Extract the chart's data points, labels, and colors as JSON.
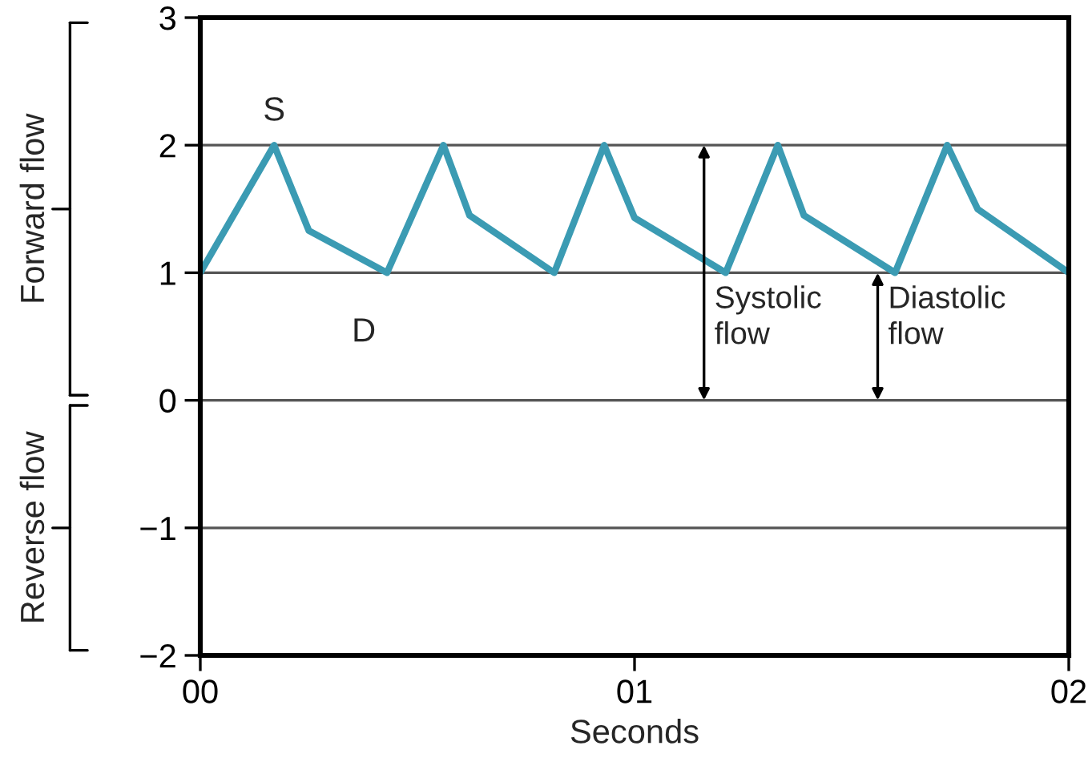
{
  "chart_data": {
    "type": "line",
    "xlabel": "Seconds",
    "series": [
      {
        "color": "#3b9bb3",
        "x": [
          0,
          0.17,
          0.25,
          0.43,
          0.56,
          0.62,
          0.815,
          0.93,
          1.0,
          1.21,
          1.33,
          1.39,
          1.6,
          1.72,
          1.79,
          2
        ],
        "values": [
          1,
          2,
          1.33,
          1,
          2,
          1.45,
          1,
          2,
          1.43,
          1,
          2,
          1.45,
          1,
          2,
          1.5,
          1
        ]
      }
    ],
    "xlim": [
      0,
      2
    ],
    "xticks": [
      {
        "value": 0,
        "label": "00"
      },
      {
        "value": 1,
        "label": "01"
      },
      {
        "value": 2,
        "label": "02"
      }
    ],
    "ylim": [
      -2,
      3
    ],
    "yticks": [
      {
        "value": -2,
        "label": "−2"
      },
      {
        "value": -1,
        "label": "−1"
      },
      0,
      1,
      2,
      3
    ],
    "grid": "y",
    "marker": "none",
    "line_style": "solid",
    "annotations": [
      {
        "text": "S",
        "x": 0.17,
        "y": 2
      },
      {
        "text": "D",
        "x": 0.43,
        "y": 1
      },
      "Forward flow",
      "Reverse flow",
      "Systolic\nflow",
      "Diastolic\nflow"
    ]
  }
}
